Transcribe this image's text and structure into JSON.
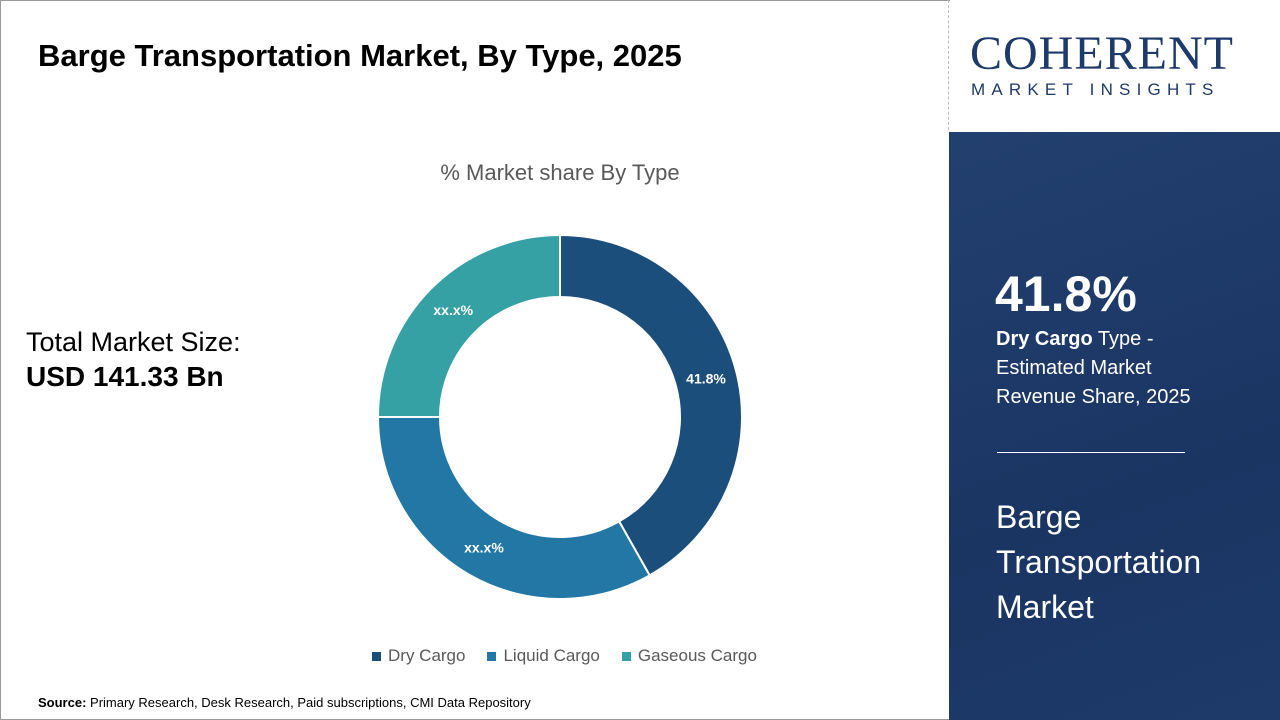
{
  "title": "Barge Transportation Market, By Type, 2025",
  "logo": {
    "main": "COHERENT",
    "sub": "MARKET INSIGHTS"
  },
  "total": {
    "label": "Total Market Size:",
    "value": "USD 141.33 Bn"
  },
  "panel": {
    "percent": "41.8%",
    "highlight": "Dry Cargo",
    "desc_rest": " Type - Estimated Market Revenue Share, 2025",
    "market_name": "Barge Transportation Market"
  },
  "source": {
    "label": "Source:",
    "text": " Primary Research, Desk Research, Paid subscriptions, CMI Data Repository"
  },
  "chart_data": {
    "type": "pie",
    "donut": true,
    "title": "% Market share By Type",
    "categories": [
      "Dry Cargo",
      "Liquid Cargo",
      "Gaseous Cargo"
    ],
    "values": [
      41.8,
      33.2,
      25.0
    ],
    "data_labels": [
      "41.8%",
      "xx.x%",
      "xx.x%"
    ],
    "colors": [
      "#1c4e7b",
      "#2277a4",
      "#35a1a4"
    ],
    "legend": "bottom"
  }
}
